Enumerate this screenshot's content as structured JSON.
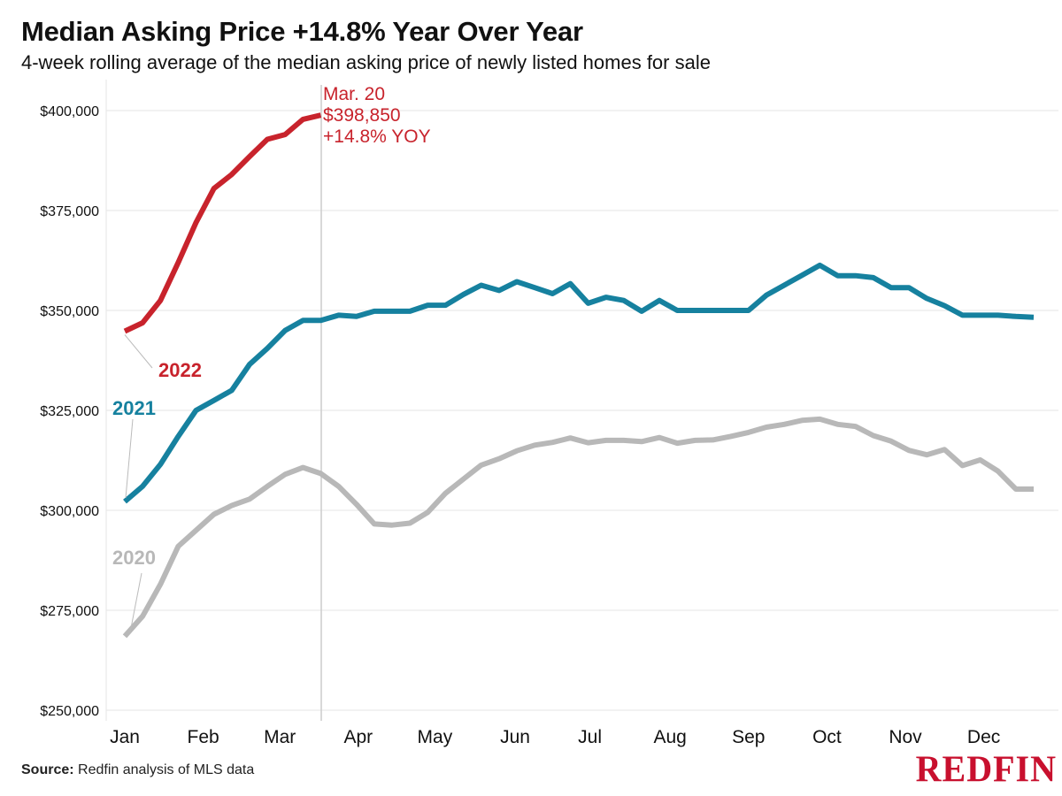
{
  "title": "Median Asking Price +14.8% Year Over Year",
  "subtitle": "4-week rolling average of the median asking price of newly listed homes for sale",
  "source": {
    "label": "Source:",
    "text": "Redfin analysis of MLS data"
  },
  "logo": "REDFIN",
  "colors": {
    "2022": "#c8232c",
    "2021": "#16819f",
    "2020": "#b8b8b8",
    "grid": "#e6e6e6",
    "marker": "#cccccc"
  },
  "chart_data": {
    "type": "line",
    "title": "Median Asking Price +14.8% Year Over Year",
    "subtitle": "4-week rolling average of the median asking price of newly listed homes for sale",
    "xlabel": "",
    "ylabel": "",
    "x_unit": "week of year",
    "x_tick_labels": [
      "Jan",
      "Feb",
      "Mar",
      "Apr",
      "May",
      "Jun",
      "Jul",
      "Aug",
      "Sep",
      "Oct",
      "Nov",
      "Dec"
    ],
    "x_tick_positions": [
      0,
      4.4,
      8.7,
      13.1,
      17.4,
      21.9,
      26.1,
      30.6,
      35,
      39.4,
      43.8,
      48.2
    ],
    "y_tick_labels": [
      "$250,000",
      "$275,000",
      "$300,000",
      "$325,000",
      "$350,000",
      "$375,000",
      "$400,000"
    ],
    "ylim": [
      250000,
      407000
    ],
    "xlim": [
      -0.5,
      53
    ],
    "grid": "horizontal",
    "legend": "direct labels on lines",
    "series": [
      {
        "name": "2022",
        "values": [
          344800,
          346900,
          352500,
          362000,
          372000,
          380500,
          384000,
          388500,
          392800,
          394000,
          397800,
          398850
        ]
      },
      {
        "name": "2021",
        "values": [
          302200,
          306000,
          311500,
          318500,
          325000,
          327500,
          330000,
          336500,
          340500,
          345000,
          347500,
          347500,
          348800,
          348500,
          349800,
          349800,
          349800,
          351300,
          351300,
          354000,
          356300,
          355000,
          357200,
          355700,
          354200,
          356700,
          351800,
          353300,
          352500,
          349800,
          352500,
          350000,
          350000,
          350000,
          350000,
          350000,
          353800,
          356300,
          358800,
          361300,
          358700,
          358700,
          358200,
          355700,
          355700,
          353000,
          351200,
          348800,
          348800,
          348800,
          348500,
          348300
        ]
      },
      {
        "name": "2020",
        "values": [
          268500,
          273500,
          281500,
          291000,
          295000,
          299000,
          301200,
          302800,
          306000,
          309000,
          310700,
          309200,
          306000,
          301500,
          296600,
          296300,
          296800,
          299500,
          304300,
          307800,
          311300,
          312900,
          314900,
          316300,
          317000,
          318100,
          316900,
          317500,
          317500,
          317200,
          318200,
          316800,
          317500,
          317600,
          318500,
          319500,
          320800,
          321500,
          322500,
          322800,
          321500,
          321000,
          318700,
          317300,
          315000,
          313900,
          315200,
          311200,
          312600,
          309800,
          305300,
          305300
        ]
      }
    ],
    "annotations": [
      {
        "text": "Mar. 20",
        "series": "2022"
      },
      {
        "text": "$398,850",
        "series": "2022"
      },
      {
        "text": "+14.8% YOY",
        "series": "2022"
      }
    ],
    "marker_x": 11
  }
}
